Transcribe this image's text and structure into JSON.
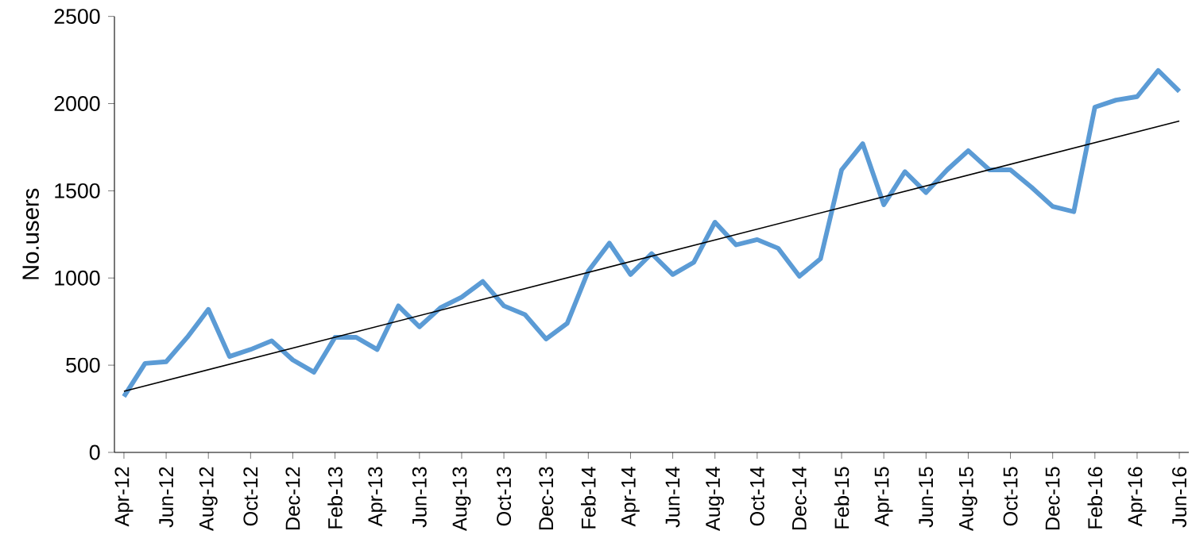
{
  "chart_data": {
    "type": "line",
    "ylabel": "No.users",
    "categories": [
      "Apr-12",
      null,
      "Jun-12",
      null,
      "Aug-12",
      null,
      "Oct-12",
      null,
      "Dec-12",
      null,
      "Feb-13",
      null,
      "Apr-13",
      null,
      "Jun-13",
      null,
      "Aug-13",
      null,
      "Oct-13",
      null,
      "Dec-13",
      null,
      "Feb-14",
      null,
      "Apr-14",
      null,
      "Jun-14",
      null,
      "Aug-14",
      null,
      "Oct-14",
      null,
      "Dec-14",
      null,
      "Feb-15",
      null,
      "Apr-15",
      null,
      "Jun-15",
      null,
      "Aug-15",
      null,
      "Oct-15",
      null,
      "Dec-15",
      null,
      "Feb-16",
      null,
      "Apr-16",
      null,
      "Jun-16"
    ],
    "series": [
      {
        "color": "#5b9bd5",
        "values": [
          320,
          510,
          520,
          660,
          820,
          550,
          590,
          640,
          530,
          460,
          660,
          660,
          590,
          840,
          720,
          830,
          890,
          980,
          840,
          790,
          650,
          740,
          1040,
          1200,
          1020,
          1140,
          1020,
          1090,
          1320,
          1190,
          1220,
          1170,
          1010,
          1110,
          1620,
          1770,
          1420,
          1610,
          1490,
          1620,
          1730,
          1620,
          1620,
          1520,
          1410,
          1380,
          1980,
          2020,
          2040,
          2190,
          2070
        ]
      },
      {
        "type": "line",
        "color": "#000000",
        "values": [
          350,
          null,
          null,
          null,
          null,
          null,
          null,
          null,
          null,
          null,
          null,
          null,
          null,
          null,
          null,
          null,
          null,
          null,
          null,
          null,
          null,
          null,
          null,
          null,
          null,
          null,
          null,
          null,
          null,
          null,
          null,
          null,
          null,
          null,
          null,
          null,
          null,
          null,
          null,
          null,
          null,
          null,
          null,
          null,
          null,
          null,
          null,
          null,
          null,
          null,
          1900
        ]
      }
    ],
    "ylim": [
      0,
      2500
    ],
    "yticks": [
      0,
      500,
      1000,
      1500,
      2000,
      2500
    ],
    "grid": false,
    "marker": "none",
    "line_style": "solid"
  }
}
